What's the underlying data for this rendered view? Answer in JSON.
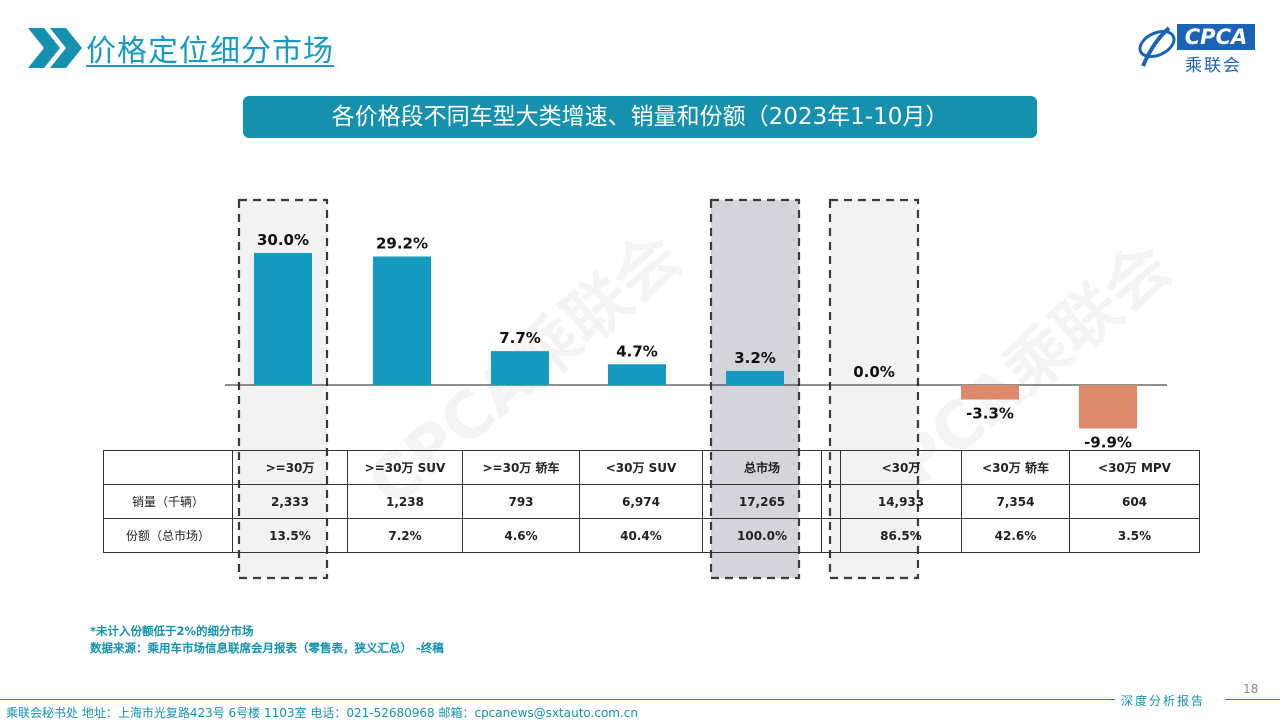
{
  "header": {
    "title": "价格定位细分市场",
    "logo_text": "CPCA",
    "logo_cn": "乘联会"
  },
  "banner": "各价格段不同车型大类增速、销量和份额（2023年1-10月）",
  "watermark": "CPCA乘联会",
  "chart_data": {
    "type": "bar",
    "categories": [
      ">=30万",
      ">=30万 SUV",
      ">=30万 轿车",
      "<30万 SUV",
      "总市场",
      "<30万",
      "<30万 轿车",
      "<30万 MPV"
    ],
    "values": [
      30.0,
      29.2,
      7.7,
      4.7,
      3.2,
      0.0,
      -3.3,
      -9.9
    ],
    "value_labels": [
      "30.0%",
      "29.2%",
      "7.7%",
      "4.7%",
      "3.2%",
      "0.0%",
      "-3.3%",
      "-9.9%"
    ],
    "positive_color": "#159bbf",
    "negative_color": "#dc8a6b",
    "highlight_fill": [
      "#f2f2f2",
      "#d4d4da",
      "#f2f2f2"
    ],
    "highlighted_categories": [
      ">=30万",
      "总市场",
      "<30万"
    ]
  },
  "table": {
    "columns": [
      ">=30万",
      ">=30万 SUV",
      ">=30万 轿车",
      "<30万 SUV",
      "总市场",
      "<30万",
      "<30万 轿车",
      "<30万 MPV"
    ],
    "rows": [
      {
        "label": "销量（千辆）",
        "values": [
          "2,333",
          "1,238",
          "793",
          "6,974",
          "17,265",
          "14,933",
          "7,354",
          "604"
        ]
      },
      {
        "label": "份额（总市场）",
        "values": [
          "13.5%",
          "7.2%",
          "4.6%",
          "40.4%",
          "100.0%",
          "86.5%",
          "42.6%",
          "3.5%"
        ]
      }
    ]
  },
  "notes": {
    "line1": "*未计入份额低于2%的细分市场",
    "line2": "数据来源：乘用车市场信息联席会月报表（零售表，狭义汇总） -终稿"
  },
  "footer": {
    "page_number": "18",
    "report_label": "深度分析报告",
    "contact": "乘联会秘书处   地址：上海市光复路423号 6号楼 1103室   电话：021-52680968   邮箱：cpcanews@sxtauto.com.cn"
  }
}
